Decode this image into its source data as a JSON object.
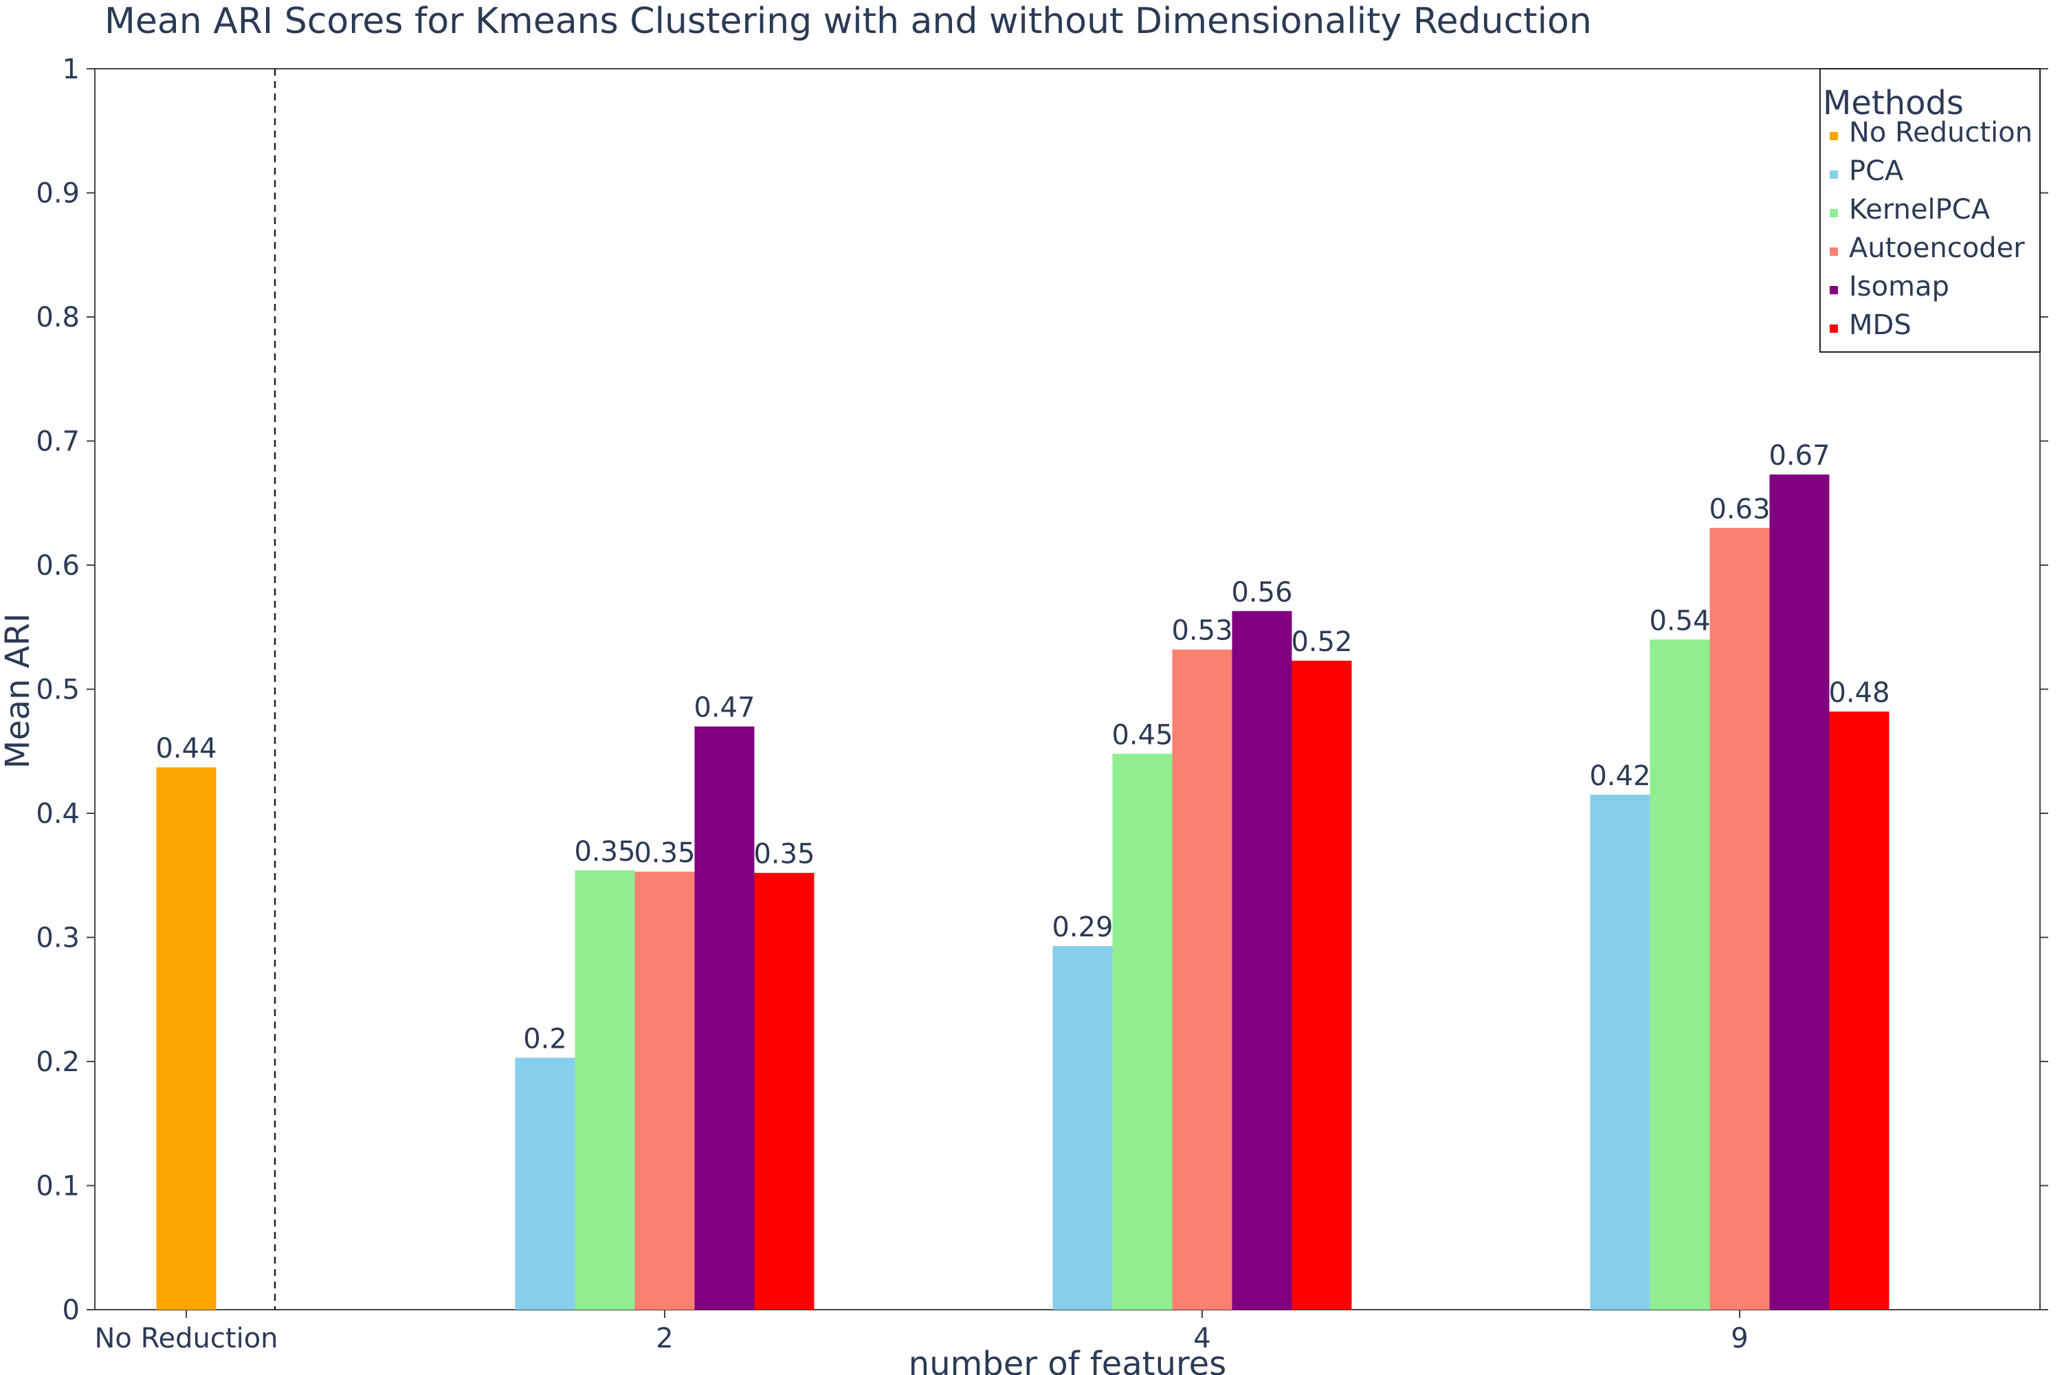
{
  "chart_data": {
    "type": "bar",
    "title": "Mean ARI Scores for Kmeans Clustering with and without Dimensionality Reduction",
    "xlabel": "number of features",
    "ylabel": "Mean ARI",
    "ylim": [
      0,
      1
    ],
    "yticks": [
      "0",
      "0.1",
      "0.2",
      "0.3",
      "0.4",
      "0.5",
      "0.6",
      "0.7",
      "0.8",
      "0.9",
      "1"
    ],
    "categories": [
      "No Reduction",
      "2",
      "4",
      "9"
    ],
    "separator": "dashed line between No Reduction and 2",
    "legend": {
      "title": "Methods",
      "position": "top-right"
    },
    "series": [
      {
        "name": "No Reduction",
        "color": "#FFA500",
        "values": [
          0.437,
          null,
          null,
          null
        ],
        "labels": [
          "0.44",
          "",
          "",
          ""
        ]
      },
      {
        "name": "PCA",
        "color": "#87CEEB",
        "values": [
          null,
          0.203,
          0.293,
          0.415
        ],
        "labels": [
          "",
          "0.2",
          "0.29",
          "0.42"
        ]
      },
      {
        "name": "KernelPCA",
        "color": "#90EE90",
        "values": [
          null,
          0.354,
          0.448,
          0.54
        ],
        "labels": [
          "",
          "0.35",
          "0.45",
          "0.54"
        ]
      },
      {
        "name": "Autoencoder",
        "color": "#FA8072",
        "values": [
          null,
          0.353,
          0.532,
          0.63
        ],
        "labels": [
          "",
          "0.35",
          "0.53",
          "0.63"
        ]
      },
      {
        "name": "Isomap",
        "color": "#800080",
        "values": [
          null,
          0.47,
          0.563,
          0.673
        ],
        "labels": [
          "",
          "0.47",
          "0.56",
          "0.67"
        ]
      },
      {
        "name": "MDS",
        "color": "#FF0000",
        "values": [
          null,
          0.352,
          0.523,
          0.482
        ],
        "labels": [
          "",
          "0.35",
          "0.52",
          "0.48"
        ]
      }
    ]
  }
}
